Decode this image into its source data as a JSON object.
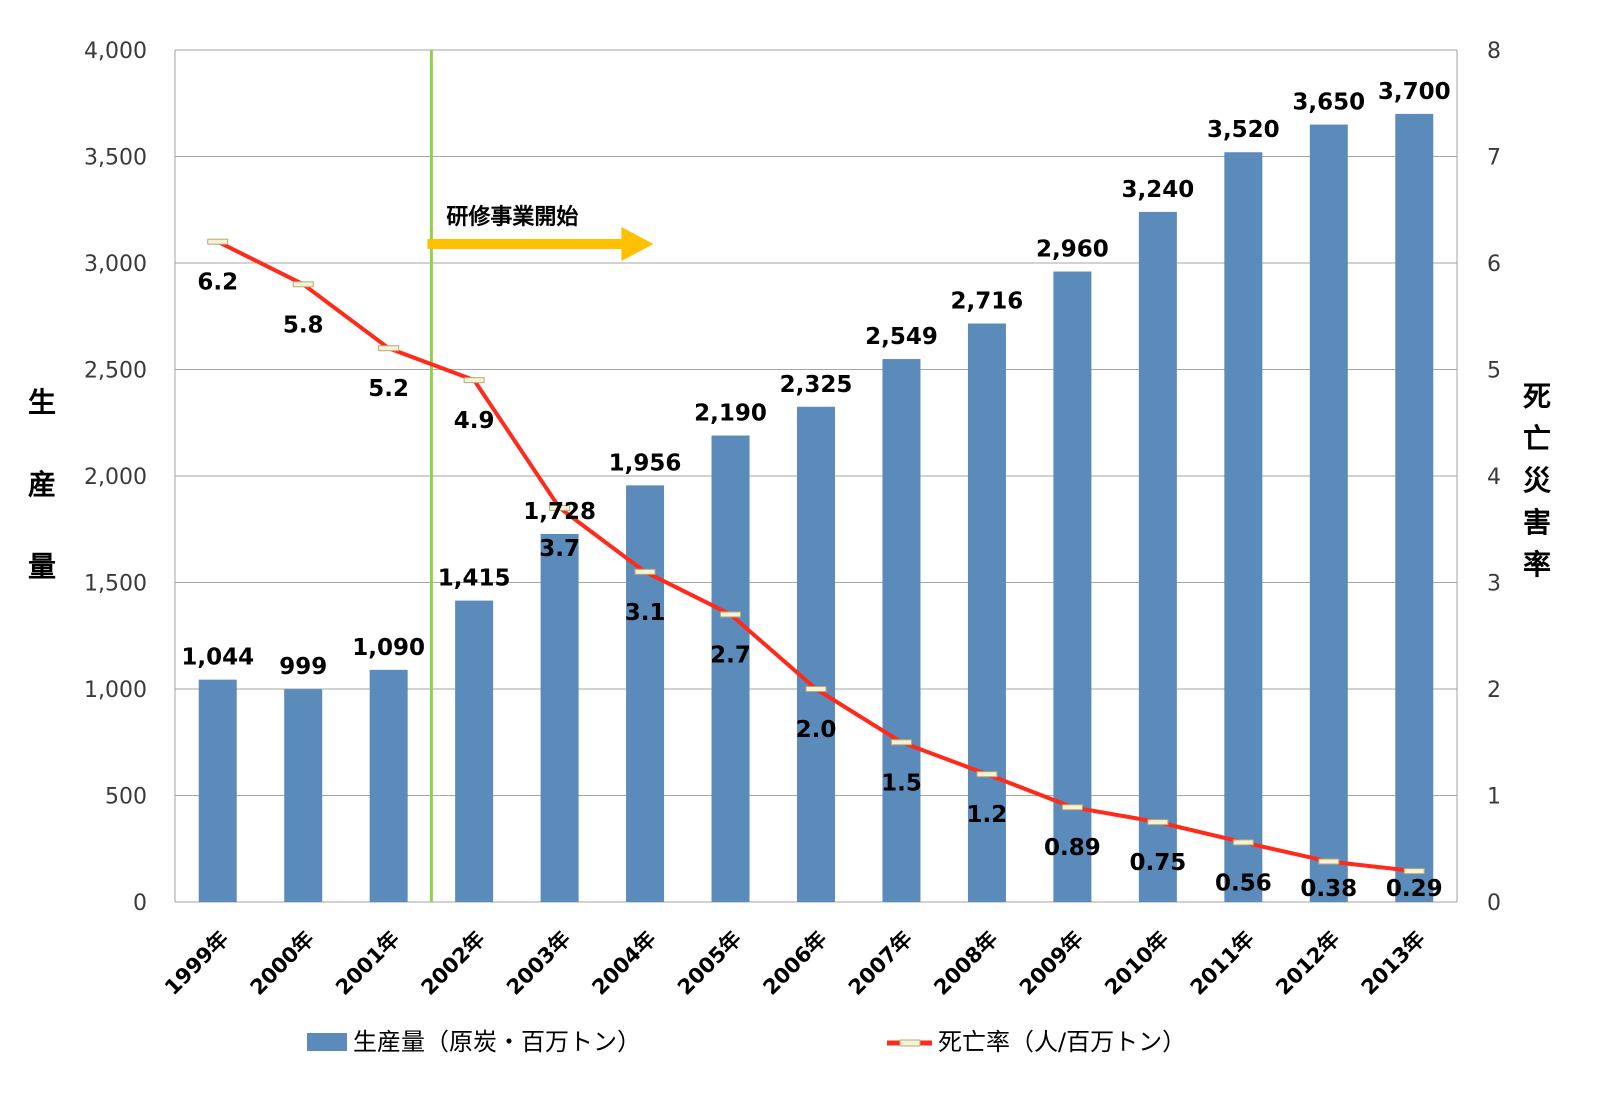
{
  "chart_data": {
    "type": "bar",
    "categories": [
      "1999年",
      "2000年",
      "2001年",
      "2002年",
      "2003年",
      "2004年",
      "2005年",
      "2006年",
      "2007年",
      "2008年",
      "2009年",
      "2010年",
      "2011年",
      "2012年",
      "2013年"
    ],
    "series": [
      {
        "name": "生産量（原炭・百万トン）",
        "type": "bar",
        "axis": "left",
        "values": [
          1044,
          999,
          1090,
          1415,
          1728,
          1956,
          2190,
          2325,
          2549,
          2716,
          2960,
          3240,
          3520,
          3650,
          3700
        ],
        "labels": [
          "1,044",
          "999",
          "1,090",
          "1,415",
          "1,728",
          "1,956",
          "2,190",
          "2,325",
          "2,549",
          "2,716",
          "2,960",
          "3,240",
          "3,520",
          "3,650",
          "3,700"
        ],
        "color": "#5b8bbb"
      },
      {
        "name": "死亡率（人/百万トン）",
        "type": "line",
        "axis": "right",
        "values": [
          6.2,
          5.8,
          5.2,
          4.9,
          3.7,
          3.1,
          2.7,
          2.0,
          1.5,
          1.2,
          0.89,
          0.75,
          0.56,
          0.38,
          0.29
        ],
        "labels": [
          "6.2",
          "5.8",
          "5.2",
          "4.9",
          "3.7",
          "3.1",
          "2.7",
          "2.0",
          "1.5",
          "1.2",
          "0.89",
          "0.75",
          "0.56",
          "0.38",
          "0.29"
        ],
        "color": "#ff2a1a"
      }
    ],
    "y_left": {
      "label": "生産量",
      "ylim": [
        0,
        4000
      ],
      "ticks": [
        "0",
        "500",
        "1,000",
        "1,500",
        "2,000",
        "2,500",
        "3,000",
        "3,500",
        "4,000"
      ]
    },
    "y_right": {
      "label": "死亡災害率",
      "ylim": [
        0,
        8
      ],
      "ticks": [
        "0",
        "1",
        "2",
        "3",
        "4",
        "5",
        "6",
        "7",
        "8"
      ]
    },
    "grid": true,
    "legend_position": "bottom",
    "annotation": {
      "text": "研修事業開始",
      "marker_between": [
        "2001年",
        "2002年"
      ],
      "arrow_color": "#ffc000",
      "line_color": "#92d050"
    }
  }
}
